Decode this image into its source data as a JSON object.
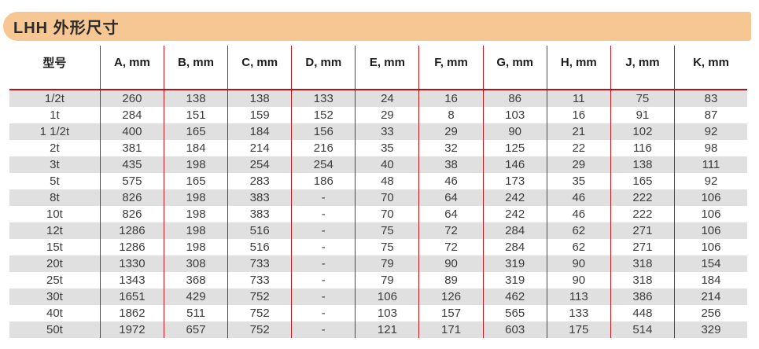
{
  "header": {
    "title": "LHH 外形尺寸",
    "bar_color": "#F6C793"
  },
  "table": {
    "columns": [
      "型号",
      "A, mm",
      "B, mm",
      "C, mm",
      "D, mm",
      "E, mm",
      "F, mm",
      "G, mm",
      "H, mm",
      "J, mm",
      "K, mm"
    ],
    "rows": [
      [
        "1/2t",
        "260",
        "138",
        "138",
        "133",
        "24",
        "16",
        "86",
        "11",
        "75",
        "83"
      ],
      [
        "1t",
        "284",
        "151",
        "159",
        "152",
        "29",
        "8",
        "103",
        "16",
        "91",
        "87"
      ],
      [
        "1 1/2t",
        "400",
        "165",
        "184",
        "156",
        "33",
        "29",
        "90",
        "21",
        "102",
        "92"
      ],
      [
        "2t",
        "381",
        "184",
        "214",
        "216",
        "35",
        "32",
        "125",
        "22",
        "116",
        "98"
      ],
      [
        "3t",
        "435",
        "198",
        "254",
        "254",
        "40",
        "38",
        "146",
        "29",
        "138",
        "111"
      ],
      [
        "5t",
        "575",
        "165",
        "283",
        "186",
        "48",
        "46",
        "173",
        "35",
        "165",
        "92"
      ],
      [
        "8t",
        "826",
        "198",
        "383",
        "-",
        "70",
        "64",
        "242",
        "46",
        "222",
        "106"
      ],
      [
        "10t",
        "826",
        "198",
        "383",
        "-",
        "70",
        "64",
        "242",
        "46",
        "222",
        "106"
      ],
      [
        "12t",
        "1286",
        "198",
        "516",
        "-",
        "75",
        "72",
        "284",
        "62",
        "271",
        "106"
      ],
      [
        "15t",
        "1286",
        "198",
        "516",
        "-",
        "75",
        "72",
        "284",
        "62",
        "271",
        "106"
      ],
      [
        "20t",
        "1330",
        "308",
        "733",
        "-",
        "79",
        "90",
        "319",
        "90",
        "318",
        "154"
      ],
      [
        "25t",
        "1343",
        "368",
        "733",
        "-",
        "79",
        "89",
        "319",
        "90",
        "318",
        "184"
      ],
      [
        "30t",
        "1651",
        "429",
        "752",
        "-",
        "106",
        "126",
        "462",
        "113",
        "386",
        "214"
      ],
      [
        "40t",
        "1862",
        "511",
        "752",
        "-",
        "103",
        "157",
        "565",
        "133",
        "448",
        "256"
      ],
      [
        "50t",
        "1972",
        "657",
        "752",
        "-",
        "121",
        "171",
        "603",
        "175",
        "514",
        "329"
      ]
    ],
    "stripe_color": "#E0E0E0",
    "line_color": "#C2171C",
    "header_rule_color": "#B5121A"
  }
}
